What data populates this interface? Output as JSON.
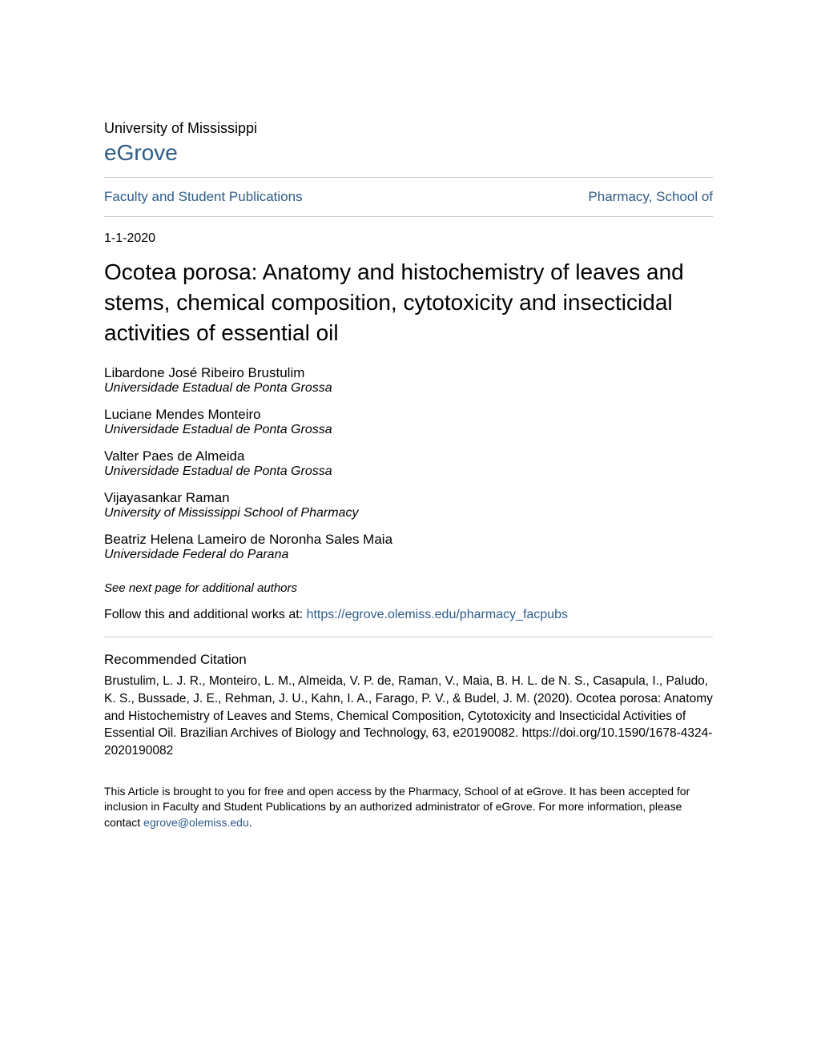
{
  "colors": {
    "link_color": "#2e5c8a",
    "text_color": "#000000",
    "background_color": "#ffffff",
    "divider_color": "#cccccc"
  },
  "typography": {
    "university_fontsize": 18,
    "repository_fontsize": 28,
    "nav_fontsize": 17,
    "date_fontsize": 16,
    "title_fontsize": 28,
    "author_fontsize": 17,
    "affiliation_fontsize": 16,
    "citation_fontsize": 15.5,
    "footer_fontsize": 14
  },
  "header": {
    "university": "University of Mississippi",
    "repository": "eGrove"
  },
  "nav": {
    "left_link": "Faculty and Student Publications",
    "right_link": "Pharmacy, School of"
  },
  "date": "1-1-2020",
  "title": "Ocotea porosa: Anatomy and histochemistry of leaves and stems, chemical composition, cytotoxicity and insecticidal activities of essential oil",
  "authors": [
    {
      "name": "Libardone José Ribeiro Brustulim",
      "affiliation": "Universidade Estadual de Ponta Grossa"
    },
    {
      "name": "Luciane Mendes Monteiro",
      "affiliation": "Universidade Estadual de Ponta Grossa"
    },
    {
      "name": "Valter Paes de Almeida",
      "affiliation": "Universidade Estadual de Ponta Grossa"
    },
    {
      "name": "Vijayasankar Raman",
      "affiliation": "University of Mississippi School of Pharmacy"
    },
    {
      "name": "Beatriz Helena Lameiro de Noronha Sales Maia",
      "affiliation": "Universidade Federal do Parana"
    }
  ],
  "see_next": "See next page for additional authors",
  "follow": {
    "prefix": "Follow this and additional works at: ",
    "link_text": "https://egrove.olemiss.edu/pharmacy_facpubs"
  },
  "citation": {
    "heading": "Recommended Citation",
    "text": "Brustulim, L. J. R., Monteiro, L. M., Almeida, V. P. de, Raman, V., Maia, B. H. L. de N. S., Casapula, I., Paludo, K. S., Bussade, J. E., Rehman, J. U., Kahn, I. A., Farago, P. V., & Budel, J. M. (2020). Ocotea porosa: Anatomy and Histochemistry of Leaves and Stems, Chemical Composition, Cytotoxicity and Insecticidal Activities of Essential Oil. Brazilian Archives of Biology and Technology, 63, e20190082. https://doi.org/10.1590/1678-4324-2020190082"
  },
  "footer": {
    "prefix": "This Article is brought to you for free and open access by the Pharmacy, School of at eGrove. It has been accepted for inclusion in Faculty and Student Publications by an authorized administrator of eGrove. For more information, please contact ",
    "email": "egrove@olemiss.edu",
    "suffix": "."
  }
}
